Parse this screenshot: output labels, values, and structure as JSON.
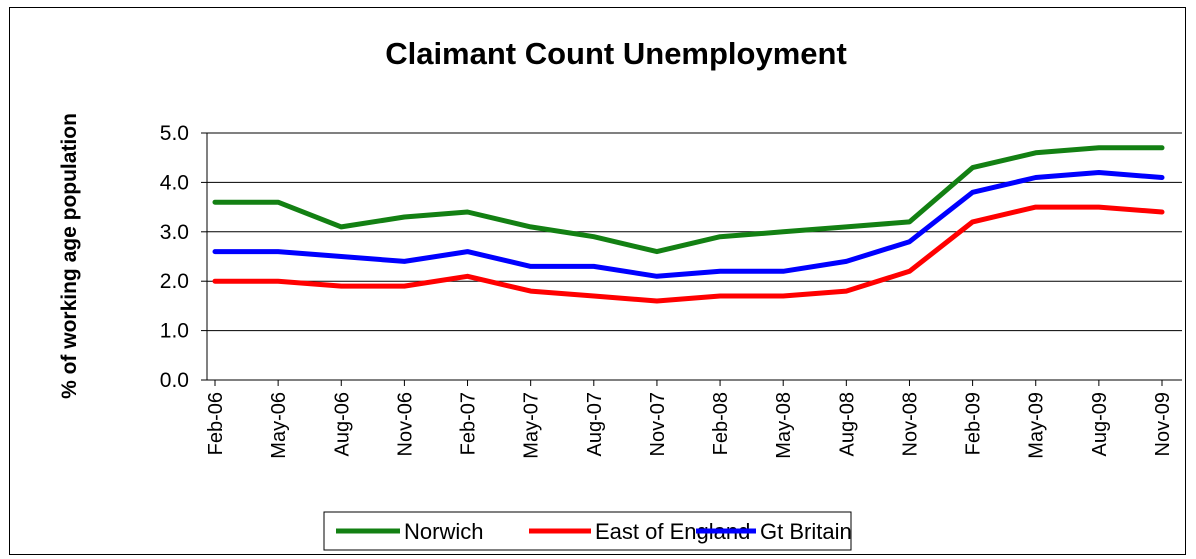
{
  "chart_data": {
    "type": "line",
    "title": "Claimant Count Unemployment",
    "xlabel": "",
    "ylabel": "% of working age population",
    "categories": [
      "Feb-06",
      "May-06",
      "Aug-06",
      "Nov-06",
      "Feb-07",
      "May-07",
      "Aug-07",
      "Nov-07",
      "Feb-08",
      "May-08",
      "Aug-08",
      "Nov-08",
      "Feb-09",
      "May-09",
      "Aug-09",
      "Nov-09"
    ],
    "y_ticks": [
      "0.0",
      "1.0",
      "2.0",
      "3.0",
      "4.0",
      "5.0"
    ],
    "ylim": [
      0,
      5
    ],
    "grid": true,
    "legend_position": "bottom",
    "series": [
      {
        "name": "Norwich",
        "color": "#138013",
        "values": [
          3.6,
          3.6,
          3.1,
          3.3,
          3.4,
          3.1,
          2.9,
          2.6,
          2.9,
          3.0,
          3.1,
          3.2,
          4.3,
          4.6,
          4.7,
          4.7
        ]
      },
      {
        "name": "East of England",
        "color": "#ff0000",
        "values": [
          2.0,
          2.0,
          1.9,
          1.9,
          2.1,
          1.8,
          1.7,
          1.6,
          1.7,
          1.7,
          1.8,
          2.2,
          3.2,
          3.5,
          3.5,
          3.4
        ]
      },
      {
        "name": "Gt Britain",
        "color": "#0000ff",
        "values": [
          2.6,
          2.6,
          2.5,
          2.4,
          2.6,
          2.3,
          2.3,
          2.1,
          2.2,
          2.2,
          2.4,
          2.8,
          3.8,
          4.1,
          4.2,
          4.1
        ]
      }
    ]
  }
}
